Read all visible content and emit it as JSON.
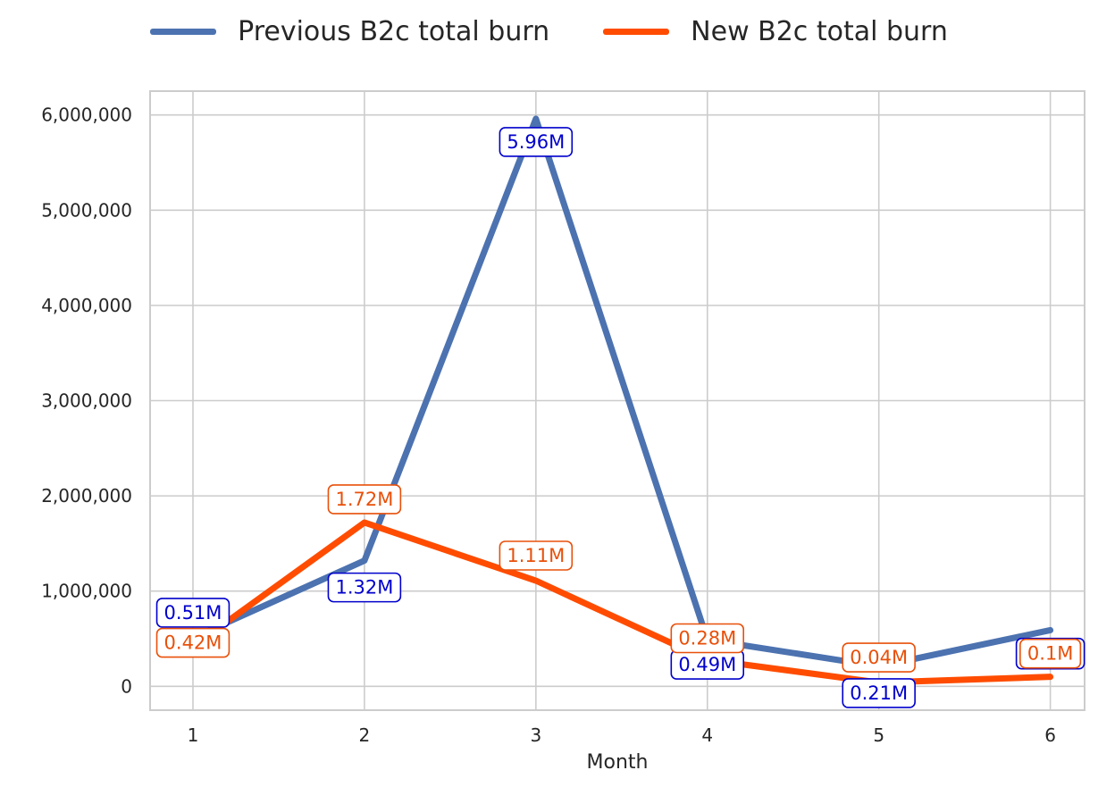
{
  "chart_data": {
    "type": "line",
    "xlabel": "Month",
    "ylabel": "",
    "x": [
      1,
      2,
      3,
      4,
      5,
      6
    ],
    "xlim": [
      0.75,
      6.2
    ],
    "ylim": [
      -250000,
      6250000
    ],
    "yticks": [
      0,
      1000000,
      2000000,
      3000000,
      4000000,
      5000000,
      6000000
    ],
    "ytick_labels": [
      "0",
      "1,000,000",
      "2,000,000",
      "3,000,000",
      "4,000,000",
      "5,000,000",
      "6,000,000"
    ],
    "xtick_labels": [
      "1",
      "2",
      "3",
      "4",
      "5",
      "6"
    ],
    "grid": true,
    "legend_position": "top-center",
    "series": [
      {
        "name": "Previous B2c total burn",
        "color": "#4c72b0",
        "label_color": "#0000cc",
        "values": [
          510000,
          1320000,
          5960000,
          490000,
          210000,
          590000
        ],
        "labels": [
          "0.51M",
          "1.32M",
          "5.96M",
          "0.49M",
          "0.21M",
          ""
        ]
      },
      {
        "name": "New B2c total burn",
        "color": "#ff4c00",
        "label_color": "#e8500a",
        "values": [
          420000,
          1720000,
          1110000,
          280000,
          40000,
          100000
        ],
        "labels": [
          "0.42M",
          "1.72M",
          "1.11M",
          "0.28M",
          "0.04M",
          "0.1M"
        ]
      }
    ]
  }
}
